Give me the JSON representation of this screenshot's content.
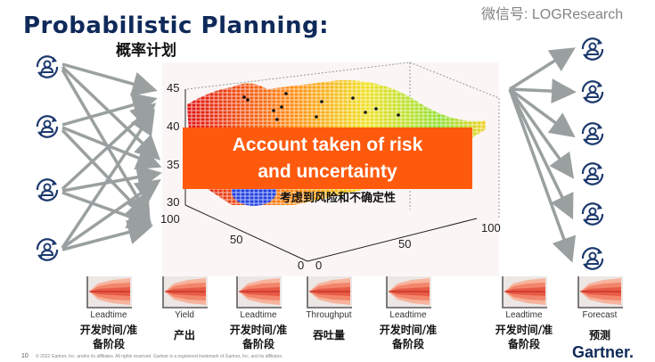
{
  "title": "Probabilistic Planning:",
  "subtitle": "概率计划",
  "banner": {
    "line1": "Account taken of risk",
    "line2": "and uncertainty",
    "cn": "考虑到风险和不确定性",
    "color": "#fe5a0e"
  },
  "chart": {
    "z_ticks": [
      "45",
      "40",
      "35",
      "30"
    ],
    "y_ticks": [
      "100",
      "50",
      "0"
    ],
    "x_ticks": [
      "0",
      "50",
      "100"
    ]
  },
  "metrics": [
    {
      "label": "Leadtime",
      "cn": "开发时间/准备阶段"
    },
    {
      "label": "Yield",
      "cn": "产出"
    },
    {
      "label": "Leadtime",
      "cn": "开发时间/准备阶段"
    },
    {
      "label": "Throughput",
      "cn": "吞吐量"
    },
    {
      "label": "Leadtime",
      "cn": "开发时间/准备阶段"
    },
    {
      "label": "Leadtime",
      "cn": "开发时间/准备阶段"
    },
    {
      "label": "Forecast",
      "cn": "预测"
    }
  ],
  "footer": {
    "page": "10",
    "copyright": "© 2022 Gartner, Inc. and/or its affiliates. All rights reserved. Gartner is a registered trademark of Gartner, Inc. and its affiliates.",
    "logo": "Gartner.",
    "watermark": "微信号: LOGResearch"
  },
  "colors": {
    "title": "#0f2a5a",
    "arrow": "#9aa0a0",
    "icon": "#1d3a6e"
  },
  "icons": {
    "left": "user-cycle-icon",
    "right": "user-cycle-icon"
  }
}
